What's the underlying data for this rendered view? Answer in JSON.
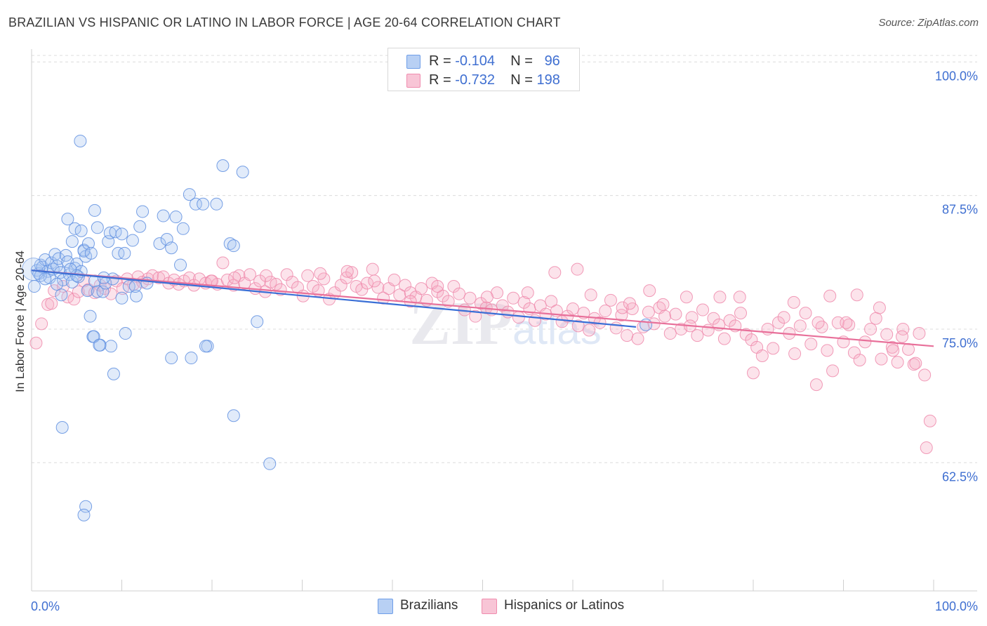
{
  "title": "BRAZILIAN VS HISPANIC OR LATINO IN LABOR FORCE | AGE 20-64 CORRELATION CHART",
  "source": "Source: ZipAtlas.com",
  "colors": {
    "blue": "#6f9ee8",
    "blue_line": "#3a6fd6",
    "pink": "#f08cae",
    "pink_line": "#e8709a",
    "axis_label": "#3f6fd1"
  },
  "legend": {
    "blue": {
      "r_label": "R =",
      "r_value": "-0.104",
      "n_label": "N =",
      "n_value": "96"
    },
    "pink": {
      "r_label": "R =",
      "r_value": "-0.732",
      "n_label": "N =",
      "n_value": "198"
    }
  },
  "bottom_legend": {
    "blue": "Brazilians",
    "pink": "Hispanics or Latinos"
  },
  "chart_data": {
    "type": "scatter",
    "title": "BRAZILIAN VS HISPANIC OR LATINO IN LABOR FORCE | AGE 20-64 CORRELATION CHART",
    "ylabel": "In Labor Force | Age 20-64",
    "xlabel": "",
    "x_tick_labels": [
      "0.0%",
      "100.0%"
    ],
    "y_tick_labels": [
      "100.0%",
      "87.5%",
      "75.0%",
      "62.5%"
    ],
    "y_ticks": [
      100.0,
      87.5,
      75.0,
      62.5
    ],
    "xlim": [
      0,
      100
    ],
    "ylim": [
      50.5,
      101.2
    ],
    "grid": true,
    "legend_position": "top-center",
    "watermark": "ZIPatlas",
    "series": [
      {
        "name": "Brazilians",
        "color": "#6f9ee8",
        "trend": {
          "x": [
            0,
            67
          ],
          "y": [
            80.5,
            75.2
          ]
        },
        "points": [
          [
            0.3,
            79.0
          ],
          [
            0.6,
            80.5
          ],
          [
            0.8,
            80.2
          ],
          [
            1.0,
            81.0
          ],
          [
            1.2,
            80.8
          ],
          [
            1.5,
            81.5
          ],
          [
            1.8,
            80.4
          ],
          [
            2.0,
            79.8
          ],
          [
            2.2,
            81.2
          ],
          [
            2.4,
            80.6
          ],
          [
            2.6,
            82.0
          ],
          [
            2.8,
            80.9
          ],
          [
            3.0,
            81.6
          ],
          [
            3.2,
            80.3
          ],
          [
            3.5,
            79.6
          ],
          [
            3.8,
            81.9
          ],
          [
            4.0,
            81.3
          ],
          [
            4.2,
            80.1
          ],
          [
            4.5,
            79.4
          ],
          [
            4.8,
            80.7
          ],
          [
            5.0,
            81.1
          ],
          [
            5.2,
            79.9
          ],
          [
            5.5,
            80.4
          ],
          [
            5.8,
            82.4
          ],
          [
            6.0,
            81.8
          ],
          [
            6.2,
            78.6
          ],
          [
            6.5,
            76.2
          ],
          [
            6.8,
            74.3
          ],
          [
            7.0,
            79.5
          ],
          [
            7.3,
            78.5
          ],
          [
            1.0,
            80.0
          ],
          [
            1.5,
            79.7
          ],
          [
            2.8,
            79.2
          ],
          [
            3.3,
            78.2
          ],
          [
            4.0,
            85.3
          ],
          [
            4.5,
            83.2
          ],
          [
            4.8,
            84.4
          ],
          [
            5.5,
            84.2
          ],
          [
            5.8,
            82.3
          ],
          [
            6.3,
            83.0
          ],
          [
            6.6,
            82.1
          ],
          [
            7.0,
            86.1
          ],
          [
            7.3,
            84.5
          ],
          [
            7.6,
            73.5
          ],
          [
            7.9,
            78.5
          ],
          [
            8.2,
            79.3
          ],
          [
            8.5,
            83.2
          ],
          [
            8.7,
            84.0
          ],
          [
            9.0,
            79.7
          ],
          [
            9.3,
            84.1
          ],
          [
            9.6,
            82.1
          ],
          [
            10.0,
            83.9
          ],
          [
            10.3,
            82.1
          ],
          [
            10.8,
            79.0
          ],
          [
            11.2,
            83.3
          ],
          [
            11.6,
            78.1
          ],
          [
            12.0,
            84.6
          ],
          [
            12.3,
            86.0
          ],
          [
            12.8,
            79.3
          ],
          [
            14.2,
            83.0
          ],
          [
            14.6,
            85.6
          ],
          [
            15.0,
            83.4
          ],
          [
            15.5,
            82.6
          ],
          [
            16.0,
            85.5
          ],
          [
            16.5,
            81.0
          ],
          [
            16.8,
            84.4
          ],
          [
            17.5,
            87.6
          ],
          [
            18.2,
            86.7
          ],
          [
            19.0,
            86.7
          ],
          [
            19.5,
            73.4
          ],
          [
            20.5,
            86.7
          ],
          [
            21.2,
            90.3
          ],
          [
            22.0,
            83.0
          ],
          [
            22.4,
            82.8
          ],
          [
            23.4,
            89.7
          ],
          [
            25.0,
            75.7
          ],
          [
            10.0,
            77.9
          ],
          [
            10.4,
            74.6
          ],
          [
            8.8,
            73.4
          ],
          [
            6.9,
            74.3
          ],
          [
            15.5,
            72.3
          ],
          [
            9.1,
            70.8
          ],
          [
            17.7,
            72.3
          ],
          [
            19.3,
            73.4
          ],
          [
            22.4,
            66.9
          ],
          [
            3.4,
            65.8
          ],
          [
            26.4,
            62.4
          ],
          [
            6.0,
            58.4
          ],
          [
            5.8,
            57.6
          ],
          [
            5.4,
            92.6
          ],
          [
            7.5,
            73.5
          ],
          [
            8.0,
            79.8
          ],
          [
            11.5,
            79.0
          ],
          [
            68.1,
            75.4
          ],
          [
            5.0,
            80.0
          ],
          [
            4.3,
            80.6
          ]
        ]
      },
      {
        "name": "Hispanics or Latinos",
        "color": "#f08cae",
        "trend": {
          "x": [
            0,
            100
          ],
          "y": [
            80.5,
            73.4
          ]
        },
        "points": [
          [
            0.5,
            73.7
          ],
          [
            1.1,
            75.5
          ],
          [
            1.8,
            77.3
          ],
          [
            2.5,
            78.6
          ],
          [
            2.2,
            77.4
          ],
          [
            3.5,
            79.0
          ],
          [
            4.0,
            78.0
          ],
          [
            4.7,
            77.8
          ],
          [
            5.2,
            78.5
          ],
          [
            5.8,
            79.5
          ],
          [
            6.3,
            78.7
          ],
          [
            7.0,
            78.4
          ],
          [
            7.6,
            79.1
          ],
          [
            8.1,
            78.8
          ],
          [
            8.8,
            78.3
          ],
          [
            9.4,
            79.5
          ],
          [
            10.1,
            78.8
          ],
          [
            10.6,
            79.7
          ],
          [
            11.3,
            79.2
          ],
          [
            11.8,
            79.9
          ],
          [
            12.3,
            79.4
          ],
          [
            12.9,
            79.7
          ],
          [
            13.4,
            80.0
          ],
          [
            14.1,
            79.8
          ],
          [
            14.6,
            79.9
          ],
          [
            15.2,
            79.3
          ],
          [
            15.8,
            79.6
          ],
          [
            16.3,
            79.2
          ],
          [
            16.9,
            79.5
          ],
          [
            17.5,
            79.8
          ],
          [
            18.0,
            79.1
          ],
          [
            18.6,
            79.7
          ],
          [
            19.3,
            79.3
          ],
          [
            19.9,
            79.5
          ],
          [
            20.6,
            79.2
          ],
          [
            21.2,
            81.2
          ],
          [
            21.7,
            79.6
          ],
          [
            22.4,
            79.1
          ],
          [
            23.0,
            80.0
          ],
          [
            23.6,
            79.3
          ],
          [
            24.2,
            80.1
          ],
          [
            24.8,
            78.8
          ],
          [
            25.3,
            79.5
          ],
          [
            25.9,
            78.5
          ],
          [
            26.5,
            79.4
          ],
          [
            27.1,
            79.2
          ],
          [
            27.6,
            78.7
          ],
          [
            28.3,
            80.1
          ],
          [
            28.9,
            79.4
          ],
          [
            29.5,
            78.9
          ],
          [
            30.1,
            78.1
          ],
          [
            30.6,
            80.0
          ],
          [
            31.2,
            79.0
          ],
          [
            31.8,
            78.6
          ],
          [
            32.4,
            79.7
          ],
          [
            33.0,
            77.8
          ],
          [
            33.6,
            78.4
          ],
          [
            34.3,
            79.1
          ],
          [
            34.9,
            79.8
          ],
          [
            35.5,
            80.3
          ],
          [
            36.0,
            79.0
          ],
          [
            36.6,
            78.7
          ],
          [
            37.2,
            79.3
          ],
          [
            37.8,
            80.6
          ],
          [
            38.4,
            78.9
          ],
          [
            39.0,
            77.9
          ],
          [
            39.6,
            78.8
          ],
          [
            40.2,
            79.6
          ],
          [
            40.8,
            78.2
          ],
          [
            41.4,
            79.1
          ],
          [
            42.0,
            78.4
          ],
          [
            42.6,
            78.0
          ],
          [
            43.2,
            78.8
          ],
          [
            43.8,
            77.7
          ],
          [
            44.4,
            79.3
          ],
          [
            45.0,
            78.5
          ],
          [
            45.6,
            78.1
          ],
          [
            46.2,
            77.6
          ],
          [
            46.8,
            79.0
          ],
          [
            47.4,
            78.3
          ],
          [
            48.0,
            76.8
          ],
          [
            48.6,
            77.9
          ],
          [
            49.2,
            76.2
          ],
          [
            49.8,
            77.4
          ],
          [
            50.4,
            77.0
          ],
          [
            51.0,
            76.8
          ],
          [
            51.6,
            78.4
          ],
          [
            52.2,
            77.2
          ],
          [
            52.8,
            76.6
          ],
          [
            53.4,
            77.9
          ],
          [
            54.0,
            76.1
          ],
          [
            54.6,
            77.5
          ],
          [
            55.2,
            76.9
          ],
          [
            55.8,
            75.8
          ],
          [
            56.4,
            77.2
          ],
          [
            57.0,
            76.4
          ],
          [
            57.6,
            77.6
          ],
          [
            58.2,
            76.7
          ],
          [
            58.8,
            75.7
          ],
          [
            59.4,
            76.2
          ],
          [
            60.0,
            76.9
          ],
          [
            60.6,
            75.3
          ],
          [
            61.2,
            76.5
          ],
          [
            61.8,
            74.9
          ],
          [
            62.4,
            76.0
          ],
          [
            63.0,
            75.6
          ],
          [
            63.6,
            76.7
          ],
          [
            64.2,
            77.7
          ],
          [
            64.8,
            75.1
          ],
          [
            65.4,
            76.3
          ],
          [
            66.0,
            74.4
          ],
          [
            66.6,
            76.9
          ],
          [
            67.2,
            74.1
          ],
          [
            67.8,
            75.2
          ],
          [
            68.4,
            76.6
          ],
          [
            69.0,
            75.5
          ],
          [
            69.6,
            77.0
          ],
          [
            70.2,
            76.2
          ],
          [
            70.8,
            74.6
          ],
          [
            71.4,
            76.4
          ],
          [
            72.0,
            75.0
          ],
          [
            72.6,
            78.0
          ],
          [
            73.2,
            76.1
          ],
          [
            73.8,
            74.4
          ],
          [
            74.4,
            76.8
          ],
          [
            75.0,
            74.9
          ],
          [
            75.6,
            76.0
          ],
          [
            76.2,
            75.4
          ],
          [
            76.8,
            74.1
          ],
          [
            77.4,
            75.8
          ],
          [
            78.0,
            75.3
          ],
          [
            78.6,
            76.5
          ],
          [
            79.2,
            74.5
          ],
          [
            79.8,
            74.0
          ],
          [
            80.4,
            73.3
          ],
          [
            81.0,
            72.5
          ],
          [
            81.6,
            75.0
          ],
          [
            82.2,
            73.2
          ],
          [
            82.8,
            75.6
          ],
          [
            83.4,
            76.1
          ],
          [
            84.0,
            74.6
          ],
          [
            84.6,
            72.7
          ],
          [
            85.2,
            75.3
          ],
          [
            85.8,
            76.5
          ],
          [
            86.4,
            73.6
          ],
          [
            87.0,
            69.8
          ],
          [
            87.6,
            75.2
          ],
          [
            88.2,
            73.0
          ],
          [
            88.8,
            71.1
          ],
          [
            89.4,
            75.6
          ],
          [
            90.0,
            73.8
          ],
          [
            90.6,
            75.4
          ],
          [
            91.2,
            72.8
          ],
          [
            91.8,
            72.1
          ],
          [
            92.4,
            73.8
          ],
          [
            93.0,
            75.0
          ],
          [
            93.6,
            76.0
          ],
          [
            94.2,
            72.2
          ],
          [
            94.8,
            74.5
          ],
          [
            95.4,
            73.3
          ],
          [
            96.0,
            71.9
          ],
          [
            96.6,
            75.0
          ],
          [
            97.2,
            73.1
          ],
          [
            97.8,
            71.7
          ],
          [
            98.4,
            74.6
          ],
          [
            99.0,
            70.7
          ],
          [
            91.5,
            78.2
          ],
          [
            76.3,
            78.0
          ],
          [
            78.5,
            78.0
          ],
          [
            94.0,
            77.0
          ],
          [
            87.2,
            75.6
          ],
          [
            90.3,
            75.6
          ],
          [
            68.5,
            78.6
          ],
          [
            58.0,
            80.3
          ],
          [
            60.5,
            80.6
          ],
          [
            45.0,
            79.0
          ],
          [
            42.0,
            77.6
          ],
          [
            55.0,
            78.4
          ],
          [
            35.0,
            80.4
          ],
          [
            20.0,
            79.5
          ],
          [
            38.0,
            79.5
          ],
          [
            32.0,
            80.2
          ],
          [
            26.0,
            80.0
          ],
          [
            22.5,
            79.8
          ],
          [
            50.5,
            78.0
          ],
          [
            62.0,
            78.2
          ],
          [
            65.5,
            77.0
          ],
          [
            70.0,
            77.3
          ],
          [
            73.0,
            75.3
          ],
          [
            84.5,
            77.5
          ],
          [
            80.0,
            70.9
          ],
          [
            95.5,
            73.0
          ],
          [
            98.0,
            71.8
          ],
          [
            99.6,
            66.4
          ],
          [
            99.2,
            63.9
          ],
          [
            96.5,
            74.3
          ],
          [
            88.5,
            78.1
          ],
          [
            66.3,
            77.4
          ]
        ]
      }
    ]
  }
}
